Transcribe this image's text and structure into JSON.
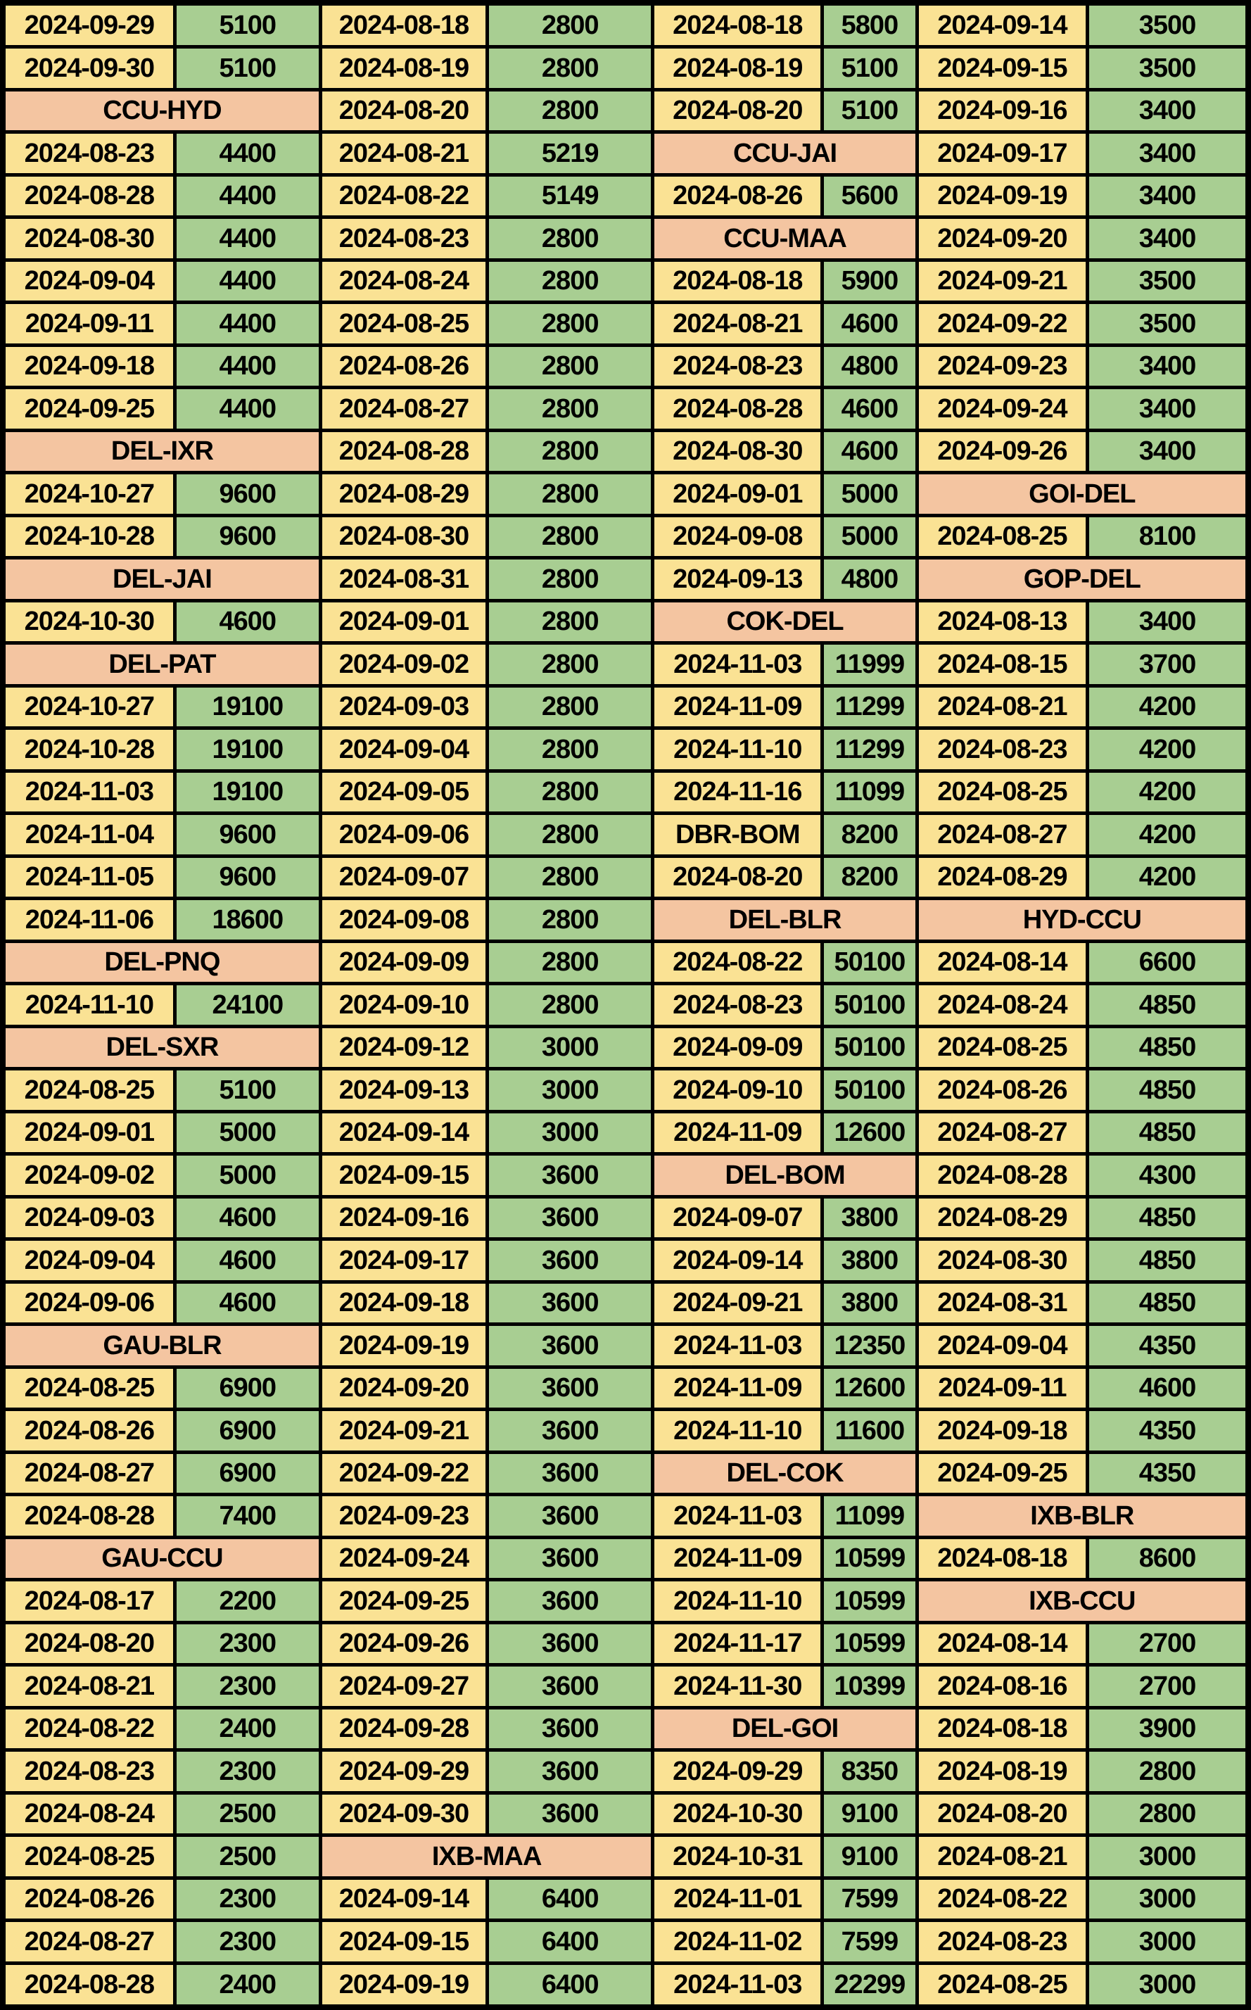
{
  "colors": {
    "date_bg": "#FAE294",
    "price_bg": "#A8CE92",
    "route_bg": "#F4C5A1",
    "border": "#000000",
    "text": "#000000"
  },
  "chart_data": {
    "type": "table",
    "title": "",
    "description_of_structure": "4 repeating column pairs (date cell, fare cell); peach merged cells spanning a pair are route headers",
    "column_pattern": [
      "date",
      "price",
      "date",
      "price",
      "date",
      "price",
      "date",
      "price"
    ],
    "column_width_percents": [
      13.8,
      11.7,
      13.4,
      13.3,
      13.6,
      7.6,
      13.7,
      12.9
    ],
    "grid": true,
    "rows": [
      [
        [
          "2024-09-29",
          "5100"
        ],
        [
          "2024-08-18",
          "2800"
        ],
        [
          "2024-08-18",
          "5800"
        ],
        [
          "2024-09-14",
          "3500"
        ]
      ],
      [
        [
          "2024-09-30",
          "5100"
        ],
        [
          "2024-08-19",
          "2800"
        ],
        [
          "2024-08-19",
          "5100"
        ],
        [
          "2024-09-15",
          "3500"
        ]
      ],
      [
        "CCU-HYD",
        [
          "2024-08-20",
          "2800"
        ],
        [
          "2024-08-20",
          "5100"
        ],
        [
          "2024-09-16",
          "3400"
        ]
      ],
      [
        [
          "2024-08-23",
          "4400"
        ],
        [
          "2024-08-21",
          "5219"
        ],
        "CCU-JAI",
        [
          "2024-09-17",
          "3400"
        ]
      ],
      [
        [
          "2024-08-28",
          "4400"
        ],
        [
          "2024-08-22",
          "5149"
        ],
        [
          "2024-08-26",
          "5600"
        ],
        [
          "2024-09-19",
          "3400"
        ]
      ],
      [
        [
          "2024-08-30",
          "4400"
        ],
        [
          "2024-08-23",
          "2800"
        ],
        "CCU-MAA",
        [
          "2024-09-20",
          "3400"
        ]
      ],
      [
        [
          "2024-09-04",
          "4400"
        ],
        [
          "2024-08-24",
          "2800"
        ],
        [
          "2024-08-18",
          "5900"
        ],
        [
          "2024-09-21",
          "3500"
        ]
      ],
      [
        [
          "2024-09-11",
          "4400"
        ],
        [
          "2024-08-25",
          "2800"
        ],
        [
          "2024-08-21",
          "4600"
        ],
        [
          "2024-09-22",
          "3500"
        ]
      ],
      [
        [
          "2024-09-18",
          "4400"
        ],
        [
          "2024-08-26",
          "2800"
        ],
        [
          "2024-08-23",
          "4800"
        ],
        [
          "2024-09-23",
          "3400"
        ]
      ],
      [
        [
          "2024-09-25",
          "4400"
        ],
        [
          "2024-08-27",
          "2800"
        ],
        [
          "2024-08-28",
          "4600"
        ],
        [
          "2024-09-24",
          "3400"
        ]
      ],
      [
        "DEL-IXR",
        [
          "2024-08-28",
          "2800"
        ],
        [
          "2024-08-30",
          "4600"
        ],
        [
          "2024-09-26",
          "3400"
        ]
      ],
      [
        [
          "2024-10-27",
          "9600"
        ],
        [
          "2024-08-29",
          "2800"
        ],
        [
          "2024-09-01",
          "5000"
        ],
        "GOI-DEL"
      ],
      [
        [
          "2024-10-28",
          "9600"
        ],
        [
          "2024-08-30",
          "2800"
        ],
        [
          "2024-09-08",
          "5000"
        ],
        [
          "2024-08-25",
          "8100"
        ]
      ],
      [
        "DEL-JAI",
        [
          "2024-08-31",
          "2800"
        ],
        [
          "2024-09-13",
          "4800"
        ],
        "GOP-DEL"
      ],
      [
        [
          "2024-10-30",
          "4600"
        ],
        [
          "2024-09-01",
          "2800"
        ],
        "COK-DEL",
        [
          "2024-08-13",
          "3400"
        ]
      ],
      [
        "DEL-PAT",
        [
          "2024-09-02",
          "2800"
        ],
        [
          "2024-11-03",
          "11999"
        ],
        [
          "2024-08-15",
          "3700"
        ]
      ],
      [
        [
          "2024-10-27",
          "19100"
        ],
        [
          "2024-09-03",
          "2800"
        ],
        [
          "2024-11-09",
          "11299"
        ],
        [
          "2024-08-21",
          "4200"
        ]
      ],
      [
        [
          "2024-10-28",
          "19100"
        ],
        [
          "2024-09-04",
          "2800"
        ],
        [
          "2024-11-10",
          "11299"
        ],
        [
          "2024-08-23",
          "4200"
        ]
      ],
      [
        [
          "2024-11-03",
          "19100"
        ],
        [
          "2024-09-05",
          "2800"
        ],
        [
          "2024-11-16",
          "11099"
        ],
        [
          "2024-08-25",
          "4200"
        ]
      ],
      [
        [
          "2024-11-04",
          "9600"
        ],
        [
          "2024-09-06",
          "2800"
        ],
        [
          "DBR-BOM",
          "8200"
        ],
        [
          "2024-08-27",
          "4200"
        ]
      ],
      [
        [
          "2024-11-05",
          "9600"
        ],
        [
          "2024-09-07",
          "2800"
        ],
        [
          "2024-08-20",
          "8200"
        ],
        [
          "2024-08-29",
          "4200"
        ]
      ],
      [
        [
          "2024-11-06",
          "18600"
        ],
        [
          "2024-09-08",
          "2800"
        ],
        "DEL-BLR",
        "HYD-CCU"
      ],
      [
        "DEL-PNQ",
        [
          "2024-09-09",
          "2800"
        ],
        [
          "2024-08-22",
          "50100"
        ],
        [
          "2024-08-14",
          "6600"
        ]
      ],
      [
        [
          "2024-11-10",
          "24100"
        ],
        [
          "2024-09-10",
          "2800"
        ],
        [
          "2024-08-23",
          "50100"
        ],
        [
          "2024-08-24",
          "4850"
        ]
      ],
      [
        "DEL-SXR",
        [
          "2024-09-12",
          "3000"
        ],
        [
          "2024-09-09",
          "50100"
        ],
        [
          "2024-08-25",
          "4850"
        ]
      ],
      [
        [
          "2024-08-25",
          "5100"
        ],
        [
          "2024-09-13",
          "3000"
        ],
        [
          "2024-09-10",
          "50100"
        ],
        [
          "2024-08-26",
          "4850"
        ]
      ],
      [
        [
          "2024-09-01",
          "5000"
        ],
        [
          "2024-09-14",
          "3000"
        ],
        [
          "2024-11-09",
          "12600"
        ],
        [
          "2024-08-27",
          "4850"
        ]
      ],
      [
        [
          "2024-09-02",
          "5000"
        ],
        [
          "2024-09-15",
          "3600"
        ],
        "DEL-BOM",
        [
          "2024-08-28",
          "4300"
        ]
      ],
      [
        [
          "2024-09-03",
          "4600"
        ],
        [
          "2024-09-16",
          "3600"
        ],
        [
          "2024-09-07",
          "3800"
        ],
        [
          "2024-08-29",
          "4850"
        ]
      ],
      [
        [
          "2024-09-04",
          "4600"
        ],
        [
          "2024-09-17",
          "3600"
        ],
        [
          "2024-09-14",
          "3800"
        ],
        [
          "2024-08-30",
          "4850"
        ]
      ],
      [
        [
          "2024-09-06",
          "4600"
        ],
        [
          "2024-09-18",
          "3600"
        ],
        [
          "2024-09-21",
          "3800"
        ],
        [
          "2024-08-31",
          "4850"
        ]
      ],
      [
        "GAU-BLR",
        [
          "2024-09-19",
          "3600"
        ],
        [
          "2024-11-03",
          "12350"
        ],
        [
          "2024-09-04",
          "4350"
        ]
      ],
      [
        [
          "2024-08-25",
          "6900"
        ],
        [
          "2024-09-20",
          "3600"
        ],
        [
          "2024-11-09",
          "12600"
        ],
        [
          "2024-09-11",
          "4600"
        ]
      ],
      [
        [
          "2024-08-26",
          "6900"
        ],
        [
          "2024-09-21",
          "3600"
        ],
        [
          "2024-11-10",
          "11600"
        ],
        [
          "2024-09-18",
          "4350"
        ]
      ],
      [
        [
          "2024-08-27",
          "6900"
        ],
        [
          "2024-09-22",
          "3600"
        ],
        "DEL-COK",
        [
          "2024-09-25",
          "4350"
        ]
      ],
      [
        [
          "2024-08-28",
          "7400"
        ],
        [
          "2024-09-23",
          "3600"
        ],
        [
          "2024-11-03",
          "11099"
        ],
        "IXB-BLR"
      ],
      [
        "GAU-CCU",
        [
          "2024-09-24",
          "3600"
        ],
        [
          "2024-11-09",
          "10599"
        ],
        [
          "2024-08-18",
          "8600"
        ]
      ],
      [
        [
          "2024-08-17",
          "2200"
        ],
        [
          "2024-09-25",
          "3600"
        ],
        [
          "2024-11-10",
          "10599"
        ],
        "IXB-CCU"
      ],
      [
        [
          "2024-08-20",
          "2300"
        ],
        [
          "2024-09-26",
          "3600"
        ],
        [
          "2024-11-17",
          "10599"
        ],
        [
          "2024-08-14",
          "2700"
        ]
      ],
      [
        [
          "2024-08-21",
          "2300"
        ],
        [
          "2024-09-27",
          "3600"
        ],
        [
          "2024-11-30",
          "10399"
        ],
        [
          "2024-08-16",
          "2700"
        ]
      ],
      [
        [
          "2024-08-22",
          "2400"
        ],
        [
          "2024-09-28",
          "3600"
        ],
        "DEL-GOI",
        [
          "2024-08-18",
          "3900"
        ]
      ],
      [
        [
          "2024-08-23",
          "2300"
        ],
        [
          "2024-09-29",
          "3600"
        ],
        [
          "2024-09-29",
          "8350"
        ],
        [
          "2024-08-19",
          "2800"
        ]
      ],
      [
        [
          "2024-08-24",
          "2500"
        ],
        [
          "2024-09-30",
          "3600"
        ],
        [
          "2024-10-30",
          "9100"
        ],
        [
          "2024-08-20",
          "2800"
        ]
      ],
      [
        [
          "2024-08-25",
          "2500"
        ],
        "IXB-MAA",
        [
          "2024-10-31",
          "9100"
        ],
        [
          "2024-08-21",
          "3000"
        ]
      ],
      [
        [
          "2024-08-26",
          "2300"
        ],
        [
          "2024-09-14",
          "6400"
        ],
        [
          "2024-11-01",
          "7599"
        ],
        [
          "2024-08-22",
          "3000"
        ]
      ],
      [
        [
          "2024-08-27",
          "2300"
        ],
        [
          "2024-09-15",
          "6400"
        ],
        [
          "2024-11-02",
          "7599"
        ],
        [
          "2024-08-23",
          "3000"
        ]
      ],
      [
        [
          "2024-08-28",
          "2400"
        ],
        [
          "2024-09-19",
          "6400"
        ],
        [
          "2024-11-03",
          "22299"
        ],
        [
          "2024-08-25",
          "3000"
        ]
      ]
    ]
  }
}
